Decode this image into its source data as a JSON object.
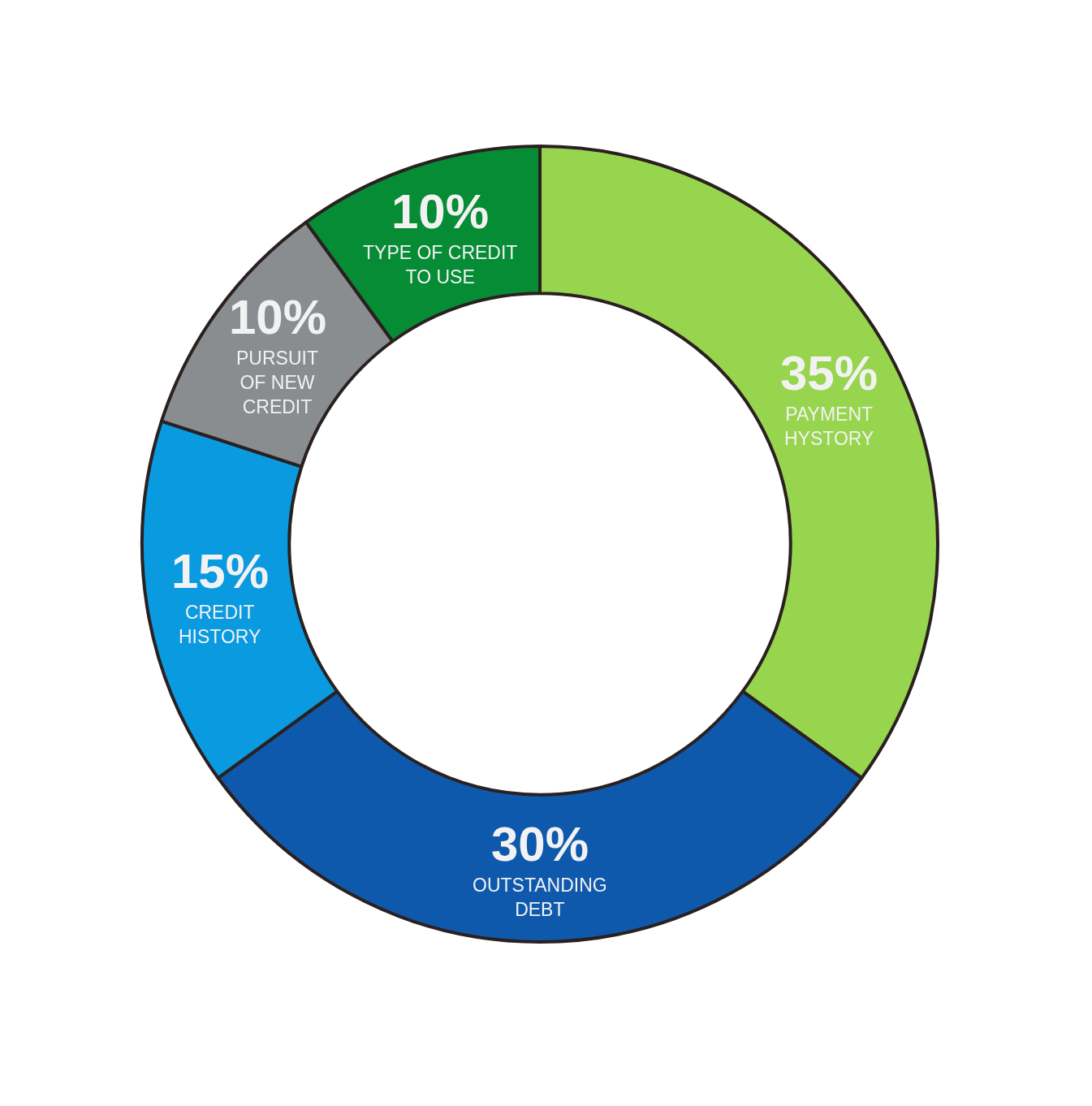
{
  "chart_data": {
    "type": "donut",
    "categories": [
      "PAYMENT\nHYSTORY",
      "OUTSTANDING\nDEBT",
      "CREDIT\nHISTORY",
      "PURSUIT\nOF NEW\nCREDIT",
      "TYPE OF CREDIT\nTO USE"
    ],
    "values": [
      35,
      30,
      15,
      10,
      10
    ],
    "value_labels": [
      "35%",
      "30%",
      "15%",
      "10%",
      "10%"
    ],
    "colors": [
      "#97d54e",
      "#0f59ad",
      "#0a9ae0",
      "#8a8d90",
      "#068c34"
    ]
  }
}
